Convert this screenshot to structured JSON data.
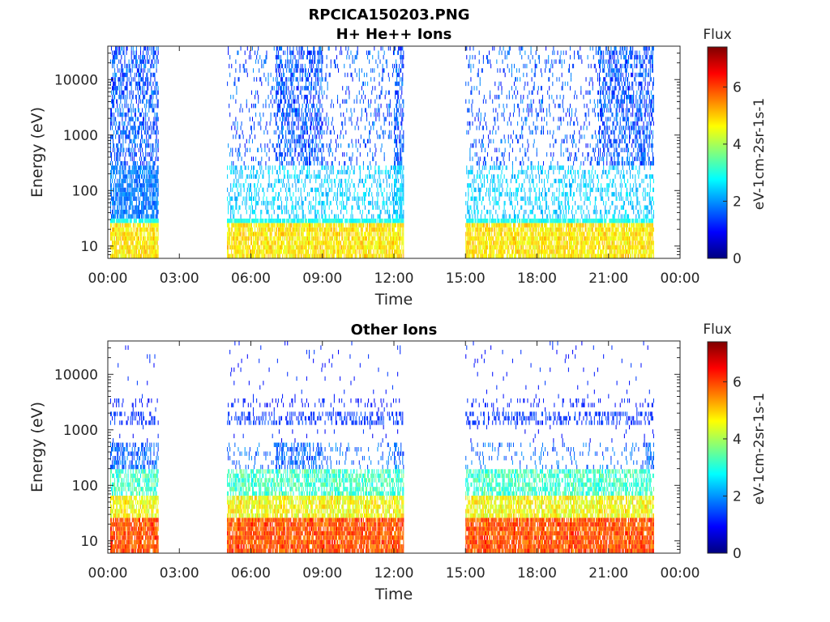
{
  "figure": {
    "title": "RPCICA150203.PNG"
  },
  "colormap": [
    "#00007f",
    "#0000ff",
    "#007fff",
    "#00ffff",
    "#7fff7f",
    "#ffff00",
    "#ff7f00",
    "#ff0000",
    "#7f0000"
  ],
  "chart_data": [
    {
      "type": "heatmap",
      "title": "H+ He++ Ions",
      "xlabel": "Time",
      "ylabel": "Energy (eV)",
      "x_tick_labels": [
        "00:00",
        "03:00",
        "06:00",
        "09:00",
        "12:00",
        "15:00",
        "18:00",
        "21:00",
        "00:00"
      ],
      "x_range_hours": [
        0,
        24
      ],
      "y_scale": "log",
      "y_tick_labels": [
        "10",
        "100",
        "1000",
        "10000"
      ],
      "y_tick_values": [
        10,
        100,
        1000,
        10000
      ],
      "y_range": [
        6,
        40000
      ],
      "data_segments_hours": [
        [
          0.1,
          2.1
        ],
        [
          5.0,
          12.4
        ],
        [
          15.0,
          22.9
        ]
      ],
      "colorbar": {
        "title": "Flux",
        "label": "eV-1cm-2sr-1s-1",
        "range": [
          0,
          7.4
        ],
        "ticks": [
          "0",
          "2",
          "4",
          "6"
        ]
      }
    },
    {
      "type": "heatmap",
      "title": "Other Ions",
      "xlabel": "Time",
      "ylabel": "Energy (eV)",
      "x_tick_labels": [
        "00:00",
        "03:00",
        "06:00",
        "09:00",
        "12:00",
        "15:00",
        "18:00",
        "21:00",
        "00:00"
      ],
      "x_range_hours": [
        0,
        24
      ],
      "y_scale": "log",
      "y_tick_labels": [
        "10",
        "100",
        "1000",
        "10000"
      ],
      "y_tick_values": [
        10,
        100,
        1000,
        10000
      ],
      "y_range": [
        6,
        40000
      ],
      "data_segments_hours": [
        [
          0.1,
          2.1
        ],
        [
          5.0,
          12.4
        ],
        [
          15.0,
          22.9
        ]
      ],
      "colorbar": {
        "title": "Flux",
        "label": "eV-1cm-2sr-1s-1",
        "range": [
          0,
          7.4
        ],
        "ticks": [
          "0",
          "2",
          "4",
          "6"
        ]
      }
    }
  ]
}
